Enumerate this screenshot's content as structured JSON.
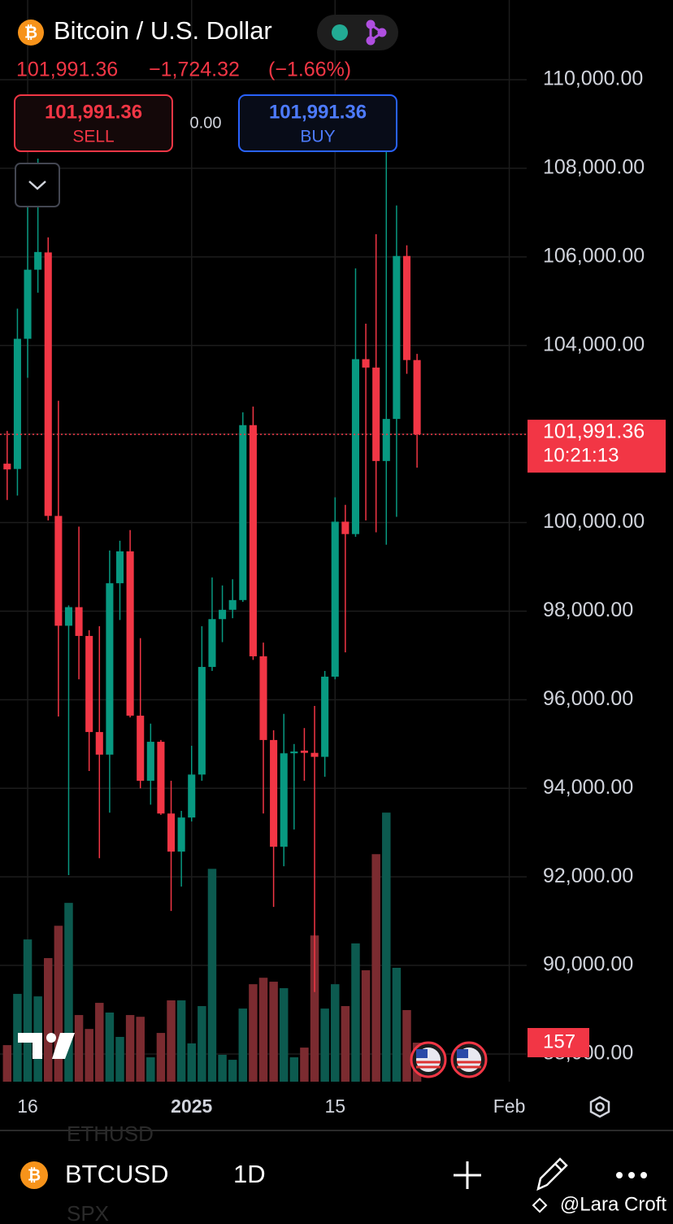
{
  "header": {
    "symbol_name": "Bitcoin / U.S. Dollar",
    "price": "101,991.36",
    "change": "−1,724.32",
    "change_pct": "(−1.66%)"
  },
  "trade": {
    "sell_price": "101,991.36",
    "sell": "SELL",
    "spread": "0.00",
    "buy_price": "101,991.36",
    "buy": "BUY"
  },
  "toolbar": {
    "symbol": "BTCUSD",
    "interval": "1D",
    "above": "ETHUSD",
    "below": "SPX"
  },
  "watermark": "@Lara Croft",
  "chart_data": {
    "type": "candlestick",
    "up_color": "#089981",
    "down_color": "#f23645",
    "volume_up_color": "#0c5a4f",
    "volume_down_color": "#7b2b30",
    "grid": true,
    "xlim": [
      -0.7,
      50.7
    ],
    "xticks": [
      {
        "value": 2,
        "label": "16"
      },
      {
        "value": 18,
        "label": "2025"
      },
      {
        "value": 32,
        "label": "15"
      },
      {
        "value": 49,
        "label": "Feb"
      }
    ],
    "ylim": [
      87375,
      111800
    ],
    "yticks": [
      {
        "value": 110000,
        "label": "110,000.00"
      },
      {
        "value": 108000,
        "label": "108,000.00"
      },
      {
        "value": 106000,
        "label": "106,000.00"
      },
      {
        "value": 104000,
        "label": "104,000.00"
      },
      {
        "value": 102000,
        "label": "102,000.00"
      },
      {
        "value": 100000,
        "label": "100,000.00"
      },
      {
        "value": 98000,
        "label": "98,000.00"
      },
      {
        "value": 96000,
        "label": "96,000.00"
      },
      {
        "value": 94000,
        "label": "94,000.00"
      },
      {
        "value": 92000,
        "label": "92,000.00"
      },
      {
        "value": 90000,
        "label": "90,000.00"
      },
      {
        "value": 88000,
        "label": "88,000.00"
      }
    ],
    "volume_ylim": [
      0,
      4350
    ],
    "open": [
      101330,
      101210,
      104150,
      105710,
      106100,
      100150,
      97670,
      98090,
      97440,
      95270,
      94760,
      98630,
      99350,
      95640,
      94170,
      95050,
      93430,
      92570,
      93340,
      94310,
      96740,
      97820,
      98030,
      98250,
      102200,
      96980,
      95090,
      92680,
      94790,
      94850,
      94800,
      94710,
      96520,
      100020,
      99740,
      103690,
      103500,
      101390,
      102340,
      106020,
      103670
    ],
    "high": [
      102070,
      104830,
      107120,
      108220,
      106440,
      102750,
      98130,
      99910,
      97570,
      97660,
      99370,
      99590,
      99830,
      97390,
      95460,
      95090,
      94170,
      93490,
      94960,
      97660,
      98760,
      98580,
      98720,
      102490,
      102620,
      97290,
      95310,
      95680,
      95000,
      95360,
      95860,
      96650,
      100570,
      100400,
      105740,
      104490,
      106510,
      108370,
      107160,
      106260,
      103810
    ],
    "low": [
      100510,
      100610,
      103270,
      105190,
      100050,
      95620,
      92040,
      96460,
      94390,
      92420,
      93450,
      97800,
      95600,
      94000,
      93630,
      93400,
      91230,
      91780,
      93250,
      94170,
      96650,
      97300,
      97840,
      98210,
      96900,
      93430,
      91320,
      92240,
      93070,
      94170,
      89400,
      94260,
      96460,
      97070,
      99680,
      100050,
      99780,
      99500,
      100130,
      103360,
      101240
    ],
    "close": [
      101200,
      104150,
      105710,
      106110,
      100150,
      97670,
      98090,
      97440,
      95270,
      94760,
      98630,
      99350,
      95640,
      94170,
      95050,
      93430,
      92570,
      93340,
      94310,
      96740,
      97820,
      98030,
      98250,
      102200,
      96980,
      95090,
      92680,
      94790,
      94830,
      94800,
      94710,
      96520,
      100020,
      99740,
      103690,
      103500,
      101390,
      102340,
      106020,
      103670,
      101991.36
    ],
    "volume": [
      147,
      353,
      572,
      343,
      497,
      627,
      719,
      268,
      212,
      317,
      278,
      180,
      268,
      261,
      98,
      196,
      327,
      327,
      154,
      304,
      856,
      108,
      88,
      294,
      392,
      418,
      402,
      376,
      98,
      137,
      588,
      294,
      392,
      304,
      556,
      448,
      915,
      1082,
      458,
      288,
      157
    ],
    "price_tag": "101,991.36",
    "countdown": "10:21:13"
  }
}
